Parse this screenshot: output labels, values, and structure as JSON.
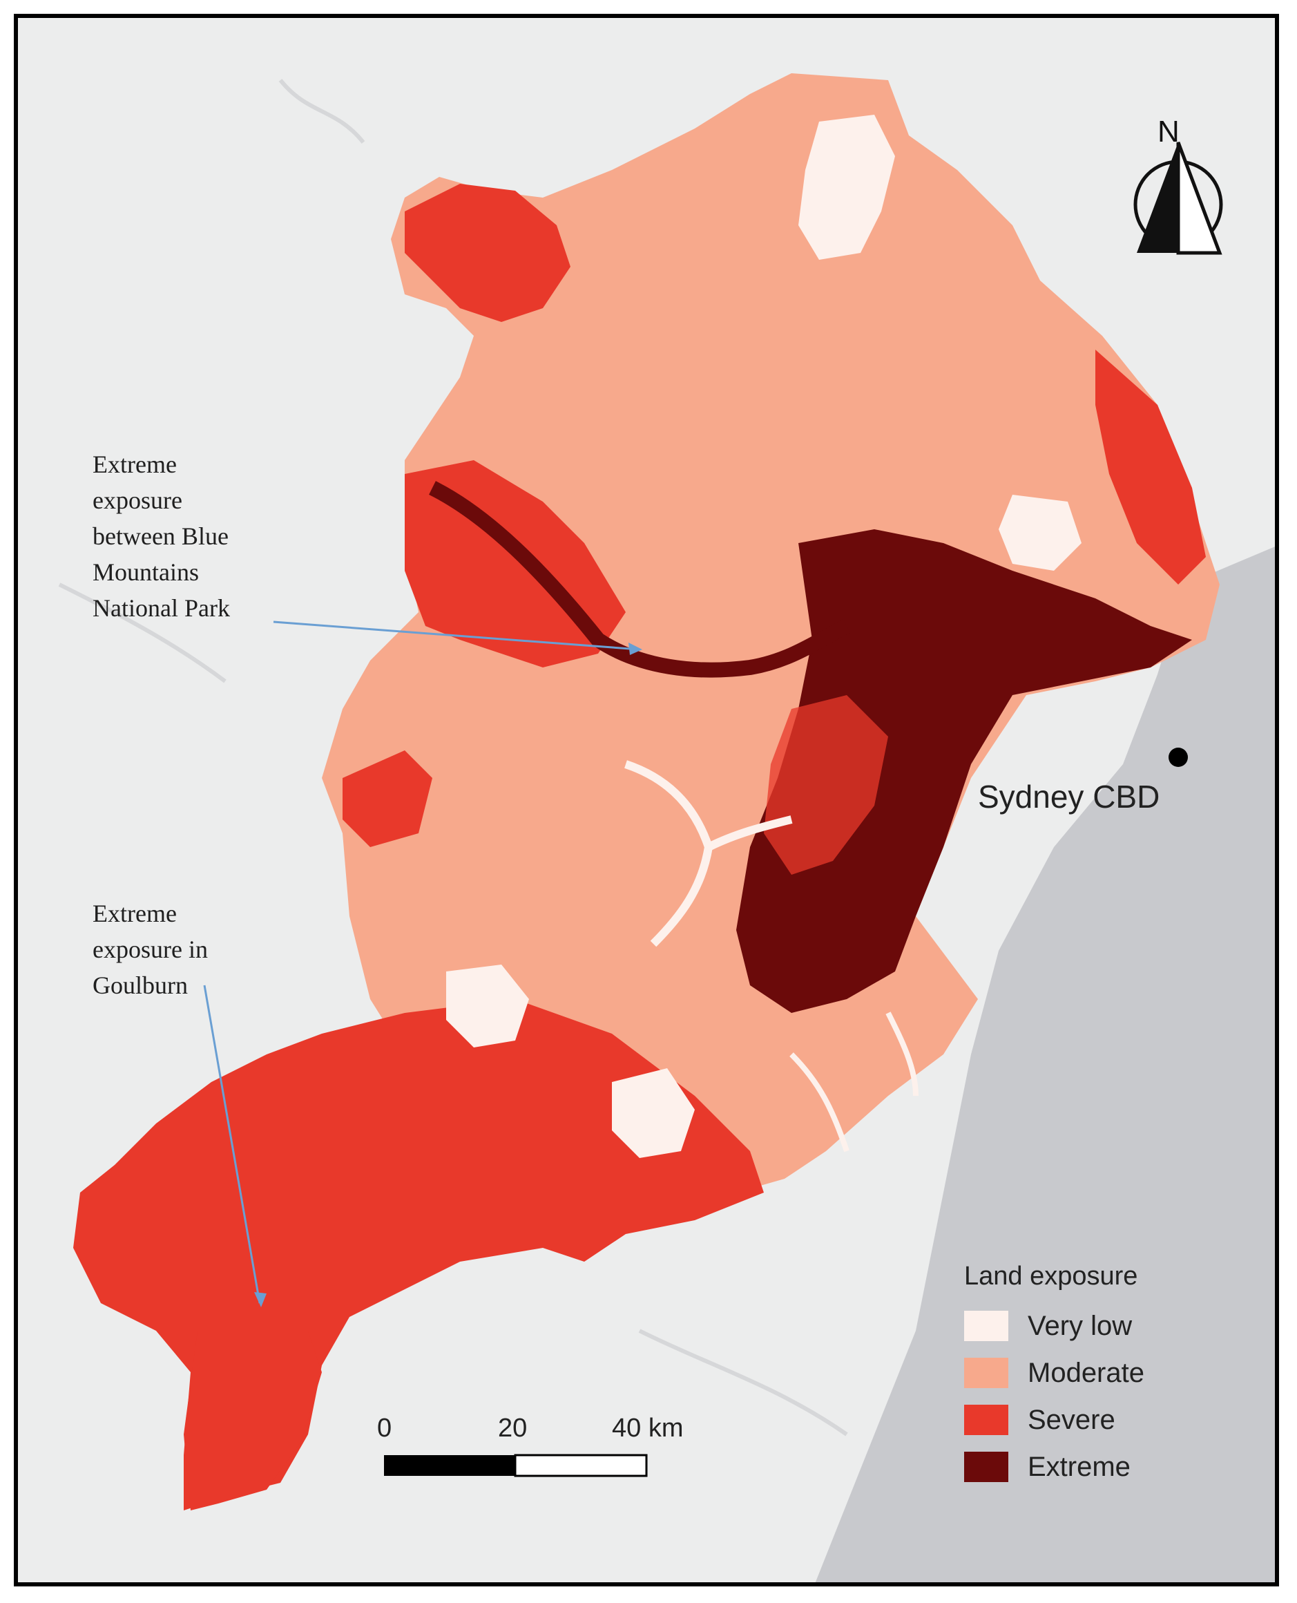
{
  "annotations": {
    "blue_mountains": [
      "Extreme",
      "exposure",
      "between Blue",
      "Mountains",
      "National Park"
    ],
    "goulburn": [
      "Extreme",
      "exposure in",
      "Goulburn"
    ]
  },
  "city_label": "Sydney CBD",
  "north_label": "N",
  "legend": {
    "title": "Land exposure",
    "items": [
      {
        "label": "Very low",
        "color": "#fdf1ec"
      },
      {
        "label": "Moderate",
        "color": "#f7a98c"
      },
      {
        "label": "Severe",
        "color": "#e8392b"
      },
      {
        "label": "Extreme",
        "color": "#6b0a0a"
      }
    ]
  },
  "scale_bar": {
    "labels": [
      "0",
      "20",
      "40 km"
    ]
  },
  "colors": {
    "background": "#eceded",
    "sea": "#c8c9cd",
    "arrow": "#6a9fd3"
  }
}
